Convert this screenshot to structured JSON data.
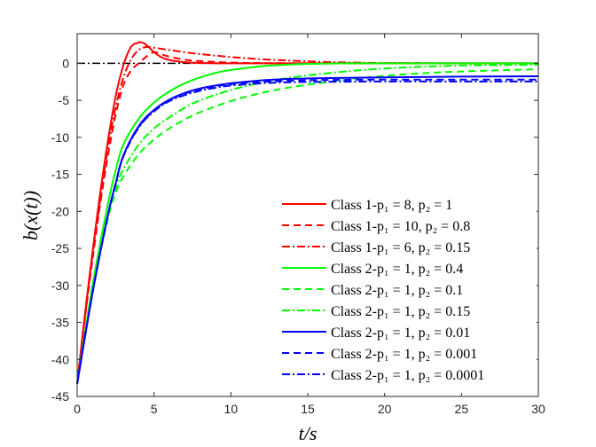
{
  "chart_data": {
    "type": "line",
    "xlabel": "t/s",
    "ylabel": "b(x(t))",
    "xlim": [
      0,
      30
    ],
    "ylim": [
      -45,
      4
    ],
    "xticks": [
      0,
      5,
      10,
      15,
      20,
      25,
      30
    ],
    "yticks": [
      0,
      -5,
      -10,
      -15,
      -20,
      -25,
      -30,
      -35,
      -40,
      -45
    ],
    "grid": false,
    "legend_position": "bottom-right",
    "reference_line": {
      "y": 0,
      "color": "#000000",
      "style": "dashdot"
    },
    "series": [
      {
        "name": "Class 1-p₁ = 8, p₂ = 1",
        "color": "#ff0000",
        "dash": "solid",
        "x": [
          0,
          0.5,
          1,
          1.5,
          2,
          2.5,
          3,
          3.5,
          4,
          4.3,
          4.6,
          5,
          5.5,
          6,
          7,
          8,
          10,
          12,
          15,
          20,
          25,
          30
        ],
        "y": [
          -43.3,
          -34,
          -25.5,
          -17.5,
          -10.5,
          -4.5,
          -0.3,
          2.2,
          2.8,
          2.75,
          2.3,
          1.5,
          0.8,
          0.45,
          0.15,
          0.05,
          0,
          0,
          0,
          0,
          0,
          0
        ]
      },
      {
        "name": "Class 1-p₁ = 10, p₂ = 0.8",
        "color": "#ff0000",
        "dash": "dashed",
        "x": [
          0,
          0.5,
          1,
          1.5,
          2,
          2.5,
          3,
          3.5,
          4,
          4.5,
          5,
          5.5,
          6,
          7,
          8,
          10,
          12,
          15,
          20,
          25,
          30
        ],
        "y": [
          -43.3,
          -34.5,
          -26.5,
          -19,
          -12.5,
          -7,
          -3,
          -1,
          0,
          0.9,
          1.5,
          1.2,
          0.9,
          0.5,
          0.3,
          0.1,
          0.03,
          0,
          0,
          0,
          0
        ]
      },
      {
        "name": "Class 1-p₁ = 6, p₂ = 0.15",
        "color": "#ff0000",
        "dash": "dashdot",
        "x": [
          0,
          0.5,
          1,
          1.5,
          2,
          2.5,
          3,
          3.5,
          4,
          4.5,
          5,
          6,
          7,
          8,
          10,
          12,
          14,
          16,
          18,
          20,
          25,
          30
        ],
        "y": [
          -43.3,
          -34.5,
          -26,
          -18.5,
          -11.5,
          -6,
          -2,
          0.5,
          1.8,
          2.2,
          2.1,
          1.8,
          1.5,
          1.25,
          0.85,
          0.55,
          0.35,
          0.2,
          0.1,
          0.05,
          0,
          0
        ]
      },
      {
        "name": "Class 2-p₁ = 1, p₂ = 0.4",
        "color": "#00ff00",
        "dash": "solid",
        "x": [
          0,
          1,
          2,
          2.5,
          3,
          4,
          5,
          6,
          7,
          8,
          9,
          10,
          12,
          14,
          16,
          18,
          20,
          25,
          30
        ],
        "y": [
          -43.3,
          -30,
          -19,
          -14.5,
          -11,
          -7.5,
          -5.3,
          -3.8,
          -2.7,
          -1.9,
          -1.3,
          -0.9,
          -0.4,
          -0.15,
          -0.05,
          0,
          0,
          0,
          0
        ]
      },
      {
        "name": "Class 2-p₁ = 1, p₂ = 0.1",
        "color": "#00ff00",
        "dash": "dashed",
        "x": [
          0,
          1,
          2,
          2.5,
          3,
          4,
          5,
          6,
          7,
          8,
          10,
          12,
          14,
          16,
          18,
          20,
          22,
          25,
          30
        ],
        "y": [
          -43.3,
          -30.5,
          -21,
          -17.5,
          -15.3,
          -12.3,
          -10.3,
          -8.8,
          -7.6,
          -6.6,
          -5.1,
          -4,
          -3.2,
          -2.6,
          -2.1,
          -1.7,
          -1.4,
          -1.1,
          -0.8
        ]
      },
      {
        "name": "Class 2-p₁ = 1, p₂ = 0.15",
        "color": "#00ff00",
        "dash": "dashdot",
        "x": [
          0,
          1,
          2,
          2.5,
          3,
          4,
          5,
          6,
          7,
          8,
          10,
          12,
          14,
          16,
          18,
          20,
          22,
          25,
          30
        ],
        "y": [
          -43.3,
          -30.5,
          -20.5,
          -16.8,
          -14.3,
          -11,
          -8.8,
          -7.3,
          -6,
          -5,
          -3.6,
          -2.6,
          -1.9,
          -1.4,
          -1,
          -0.7,
          -0.5,
          -0.3,
          -0.2
        ]
      },
      {
        "name": "Class 2-p₁ = 1, p₂ = 0.01",
        "color": "#0000ff",
        "dash": "solid",
        "x": [
          0,
          1,
          2,
          2.5,
          3,
          4,
          5,
          6,
          7,
          8,
          9,
          10,
          12,
          14,
          16,
          20,
          25,
          30
        ],
        "y": [
          -43.3,
          -31,
          -20.5,
          -16.3,
          -12.5,
          -8.5,
          -6.3,
          -4.9,
          -4,
          -3.4,
          -3,
          -2.7,
          -2.3,
          -2.1,
          -2,
          -1.9,
          -1.8,
          -1.75
        ]
      },
      {
        "name": "Class 2-p₁ = 1, p₂ = 0.001",
        "color": "#0000ff",
        "dash": "dashed",
        "x": [
          0,
          1,
          2,
          2.5,
          3,
          4,
          5,
          6,
          7,
          8,
          9,
          10,
          12,
          14,
          16,
          20,
          25,
          30
        ],
        "y": [
          -43.3,
          -31,
          -20.5,
          -16.3,
          -12.6,
          -8.6,
          -6.4,
          -5,
          -4.1,
          -3.5,
          -3.1,
          -2.8,
          -2.5,
          -2.35,
          -2.25,
          -2.2,
          -2.2,
          -2.2
        ]
      },
      {
        "name": "Class 2-p₁ = 1, p₂ = 0.0001",
        "color": "#0000ff",
        "dash": "dashdot",
        "x": [
          0,
          1,
          2,
          2.5,
          3,
          4,
          5,
          6,
          7,
          8,
          9,
          10,
          12,
          14,
          16,
          20,
          25,
          30
        ],
        "y": [
          -43.3,
          -31,
          -20.5,
          -16.3,
          -12.6,
          -8.7,
          -6.5,
          -5.1,
          -4.3,
          -3.7,
          -3.3,
          -3,
          -2.7,
          -2.55,
          -2.5,
          -2.45,
          -2.45,
          -2.45
        ]
      }
    ]
  }
}
